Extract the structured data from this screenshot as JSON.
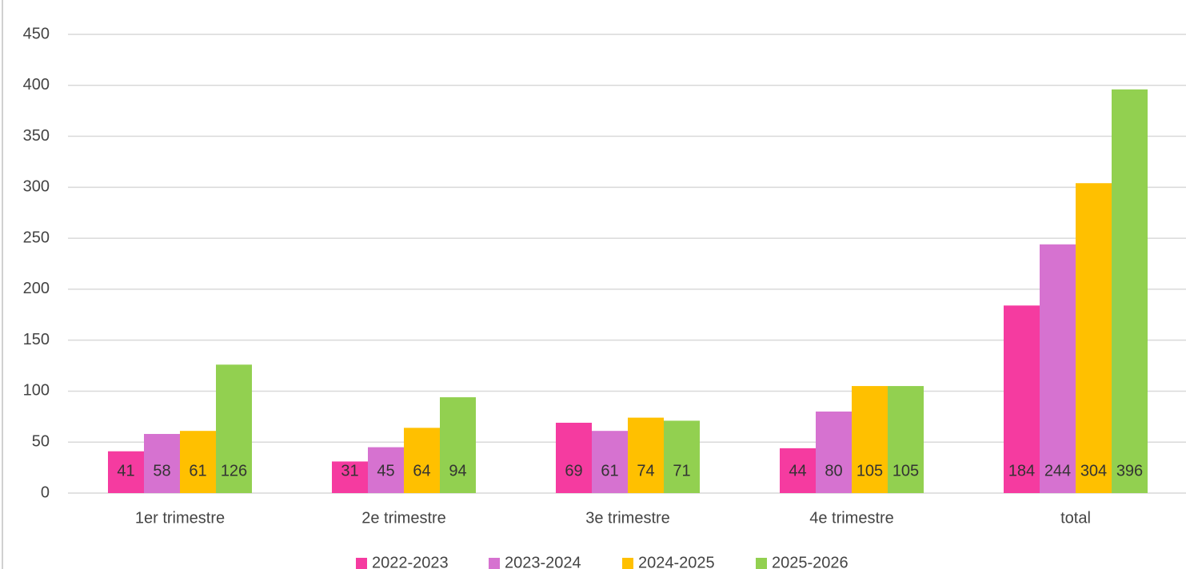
{
  "chart_data": {
    "type": "bar",
    "categories": [
      "1er trimestre",
      "2e trimestre",
      "3e trimestre",
      "4e trimestre",
      "total"
    ],
    "series": [
      {
        "name": "2022-2023",
        "color": "#f53ba0",
        "values": [
          41,
          31,
          69,
          44,
          184
        ]
      },
      {
        "name": "2023-2024",
        "color": "#d672d0",
        "values": [
          58,
          45,
          61,
          80,
          244
        ]
      },
      {
        "name": "2024-2025",
        "color": "#ffc000",
        "values": [
          61,
          64,
          74,
          105,
          304
        ]
      },
      {
        "name": "2025-2026",
        "color": "#92d050",
        "values": [
          126,
          94,
          71,
          105,
          396
        ]
      }
    ],
    "ylim": [
      0,
      450
    ],
    "yticks": [
      0,
      50,
      100,
      150,
      200,
      250,
      300,
      350,
      400,
      450
    ],
    "grid": true,
    "legend": "bottom"
  }
}
